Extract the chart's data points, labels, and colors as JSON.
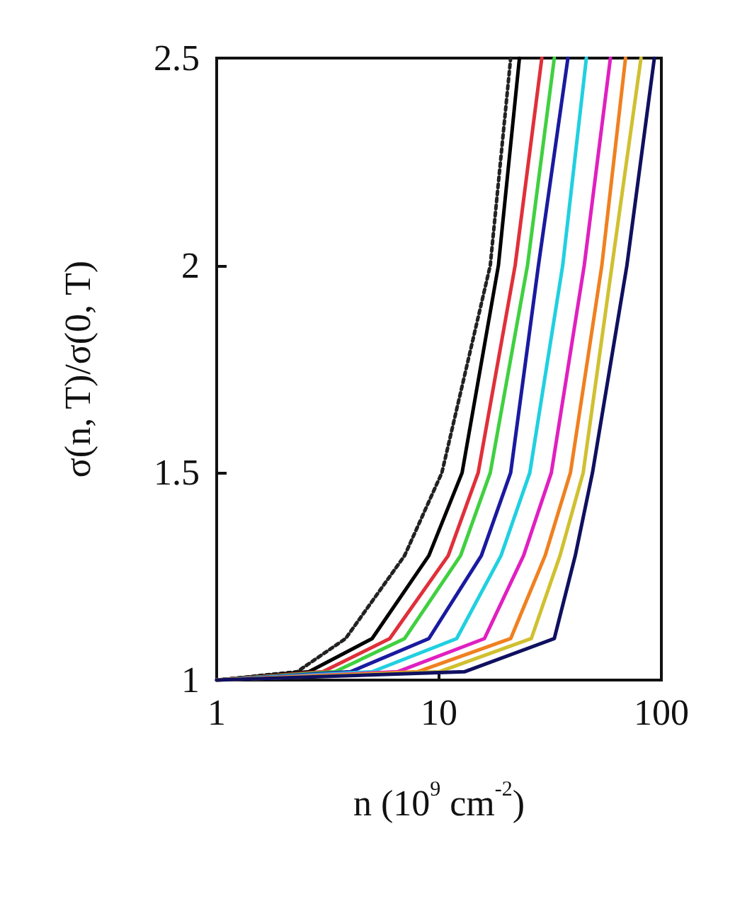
{
  "chart_data": {
    "type": "line",
    "xlabel": "n (10$^{9}$ cm$^{-2}$)",
    "ylabel": "σ(n, T)/σ(0, T)",
    "log": "x",
    "xlim": [
      1,
      100
    ],
    "xticks": [
      1,
      10,
      100
    ],
    "ylim": [
      1,
      2.5
    ],
    "yticks": [
      1,
      1.5,
      2,
      2.5
    ],
    "grid": false,
    "legend": false,
    "marker": "none",
    "series": [
      {
        "color": "#222222",
        "line_style": "dotted",
        "x": [
          1,
          2.3,
          3.8,
          7,
          10.3,
          17,
          21
        ],
        "values": [
          1,
          1.02,
          1.1,
          1.3,
          1.5,
          2,
          2.5
        ]
      },
      {
        "color": "#000000",
        "line_style": "solid",
        "x": [
          1,
          2.6,
          5,
          9,
          12.7,
          18.5,
          23
        ],
        "values": [
          1,
          1.02,
          1.1,
          1.3,
          1.5,
          2,
          2.5
        ]
      },
      {
        "color": "#e0303a",
        "line_style": "solid",
        "x": [
          1,
          3,
          6,
          11,
          15,
          22,
          29
        ],
        "values": [
          1,
          1.02,
          1.1,
          1.3,
          1.5,
          2,
          2.5
        ]
      },
      {
        "color": "#40d040",
        "line_style": "solid",
        "x": [
          1,
          3.4,
          7,
          12.5,
          17,
          25,
          33
        ],
        "values": [
          1,
          1.02,
          1.1,
          1.3,
          1.5,
          2,
          2.5
        ]
      },
      {
        "color": "#1a1aa0",
        "line_style": "solid",
        "x": [
          1,
          4,
          9,
          15.5,
          21,
          28,
          38
        ],
        "values": [
          1,
          1.02,
          1.1,
          1.3,
          1.5,
          2,
          2.5
        ]
      },
      {
        "color": "#20d0e0",
        "line_style": "solid",
        "x": [
          1,
          5,
          12,
          19,
          25.6,
          36,
          46
        ],
        "values": [
          1,
          1.02,
          1.1,
          1.3,
          1.5,
          2,
          2.5
        ]
      },
      {
        "color": "#e020c0",
        "line_style": "solid",
        "x": [
          1,
          6.5,
          16,
          24,
          32,
          45,
          59
        ],
        "values": [
          1,
          1.02,
          1.1,
          1.3,
          1.5,
          2,
          2.5
        ]
      },
      {
        "color": "#f08020",
        "line_style": "solid",
        "x": [
          1,
          8,
          21,
          30,
          39,
          54,
          69
        ],
        "values": [
          1,
          1.02,
          1.1,
          1.3,
          1.5,
          2,
          2.5
        ]
      },
      {
        "color": "#d0c030",
        "line_style": "solid",
        "x": [
          1,
          10,
          26,
          35,
          44.5,
          60,
          81
        ],
        "values": [
          1,
          1.02,
          1.1,
          1.3,
          1.5,
          2,
          2.5
        ]
      },
      {
        "color": "#101060",
        "line_style": "solid",
        "x": [
          1,
          13,
          33,
          41,
          49,
          70,
          93
        ],
        "values": [
          1,
          1.02,
          1.1,
          1.3,
          1.5,
          2,
          2.5
        ]
      }
    ]
  }
}
